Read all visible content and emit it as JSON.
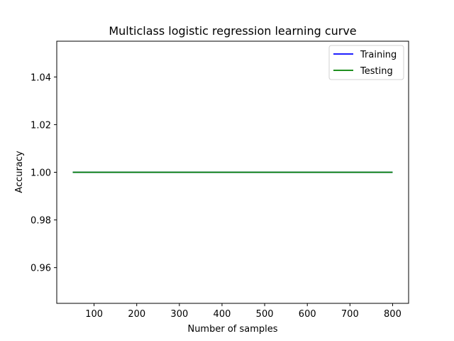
{
  "chart_data": {
    "type": "line",
    "title": "Multiclass logistic regression learning curve",
    "xlabel": "Number of samples",
    "ylabel": "Accuracy",
    "xlim": [
      12.5,
      837.5
    ],
    "ylim": [
      0.945,
      1.055
    ],
    "xticks": [
      100,
      200,
      300,
      400,
      500,
      600,
      700,
      800
    ],
    "xtick_labels": [
      "100",
      "200",
      "300",
      "400",
      "500",
      "600",
      "700",
      "800"
    ],
    "yticks": [
      0.96,
      0.98,
      1.0,
      1.02,
      1.04
    ],
    "ytick_labels": [
      "0.96",
      "0.98",
      "1.00",
      "1.02",
      "1.04"
    ],
    "grid": false,
    "legend_position": "top-right",
    "series": [
      {
        "name": "Training",
        "color": "#0000ff",
        "x": [
          50,
          800
        ],
        "y": [
          1.0,
          1.0
        ]
      },
      {
        "name": "Testing",
        "color": "#008000",
        "x": [
          50,
          800
        ],
        "y": [
          1.0,
          1.0
        ]
      }
    ]
  }
}
